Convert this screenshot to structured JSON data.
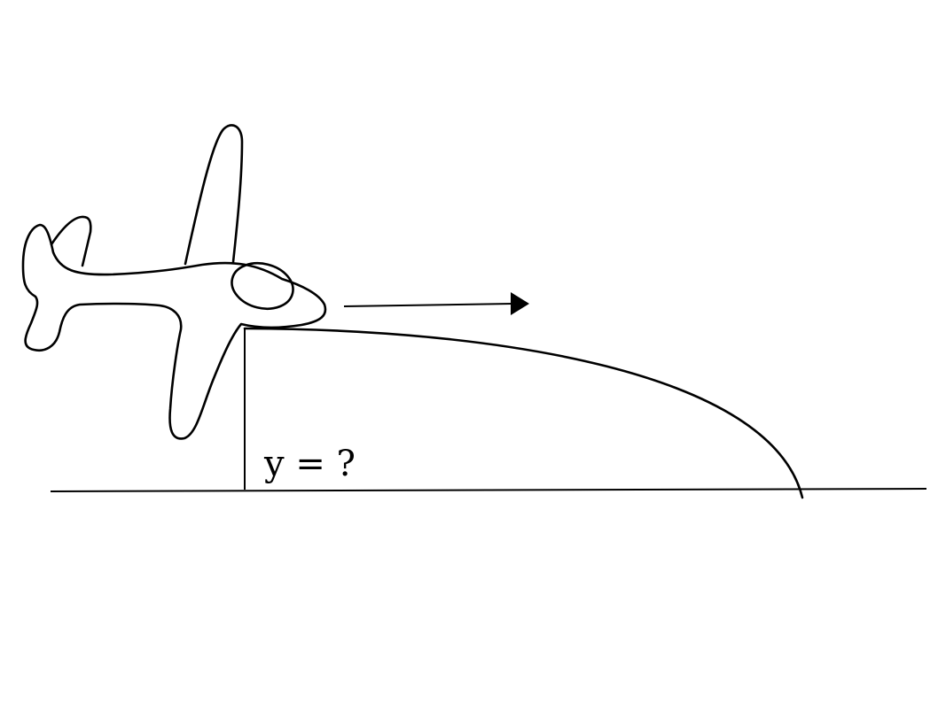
{
  "diagram": {
    "height_label": "y = ?"
  },
  "colors": {
    "stroke": "#000000",
    "background": "#ffffff"
  }
}
